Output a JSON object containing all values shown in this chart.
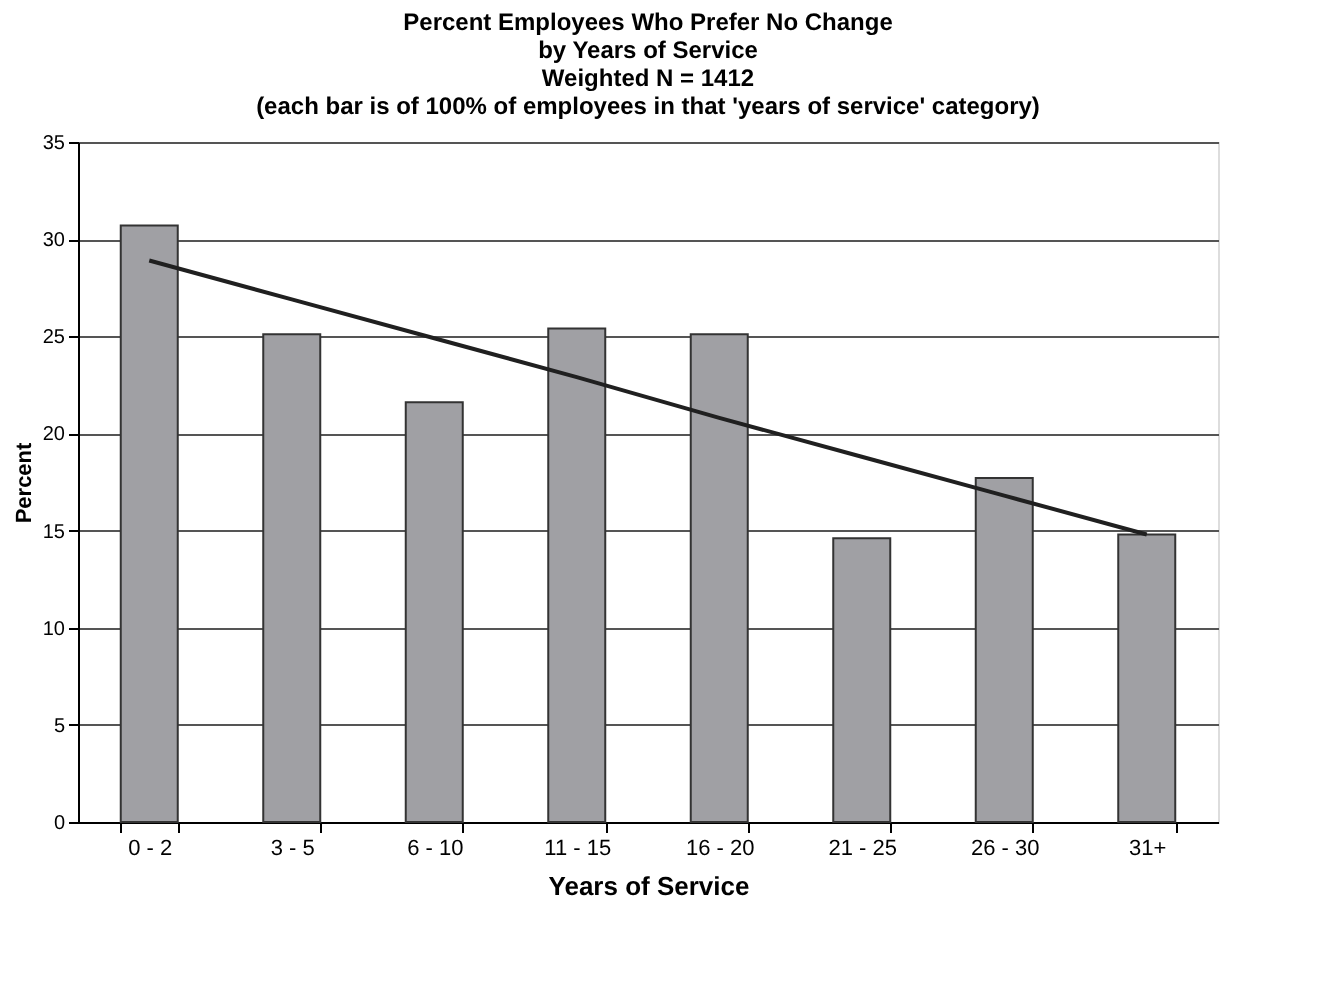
{
  "chart_data": {
    "type": "bar",
    "title": "Percent Employees Who Prefer No Change\nby Years of Service\nWeighted N = 1412\n(each bar is of 100% of employees in that 'years of service' category)",
    "xlabel": "Years of Service",
    "ylabel": "Percent",
    "categories": [
      "0 - 2",
      "3 - 5",
      "6 - 10",
      "11 - 15",
      "16 - 20",
      "21 - 25",
      "26 - 30",
      "31+"
    ],
    "series": [
      {
        "color": "#a0a0a4",
        "values": [
          30.7,
          25.1,
          21.6,
          25.4,
          25.1,
          14.6,
          17.7,
          14.8
        ]
      },
      {
        "type": "line",
        "color": "#202020",
        "values": [
          28.9,
          26.9,
          24.9,
          22.9,
          20.8,
          18.8,
          16.8,
          14.8
        ],
        "marker": "none",
        "line_style": "solid"
      }
    ],
    "ylim": [
      0,
      35
    ],
    "yticks": [
      0,
      5,
      10,
      15,
      20,
      25,
      30,
      35
    ],
    "grid": "y"
  }
}
